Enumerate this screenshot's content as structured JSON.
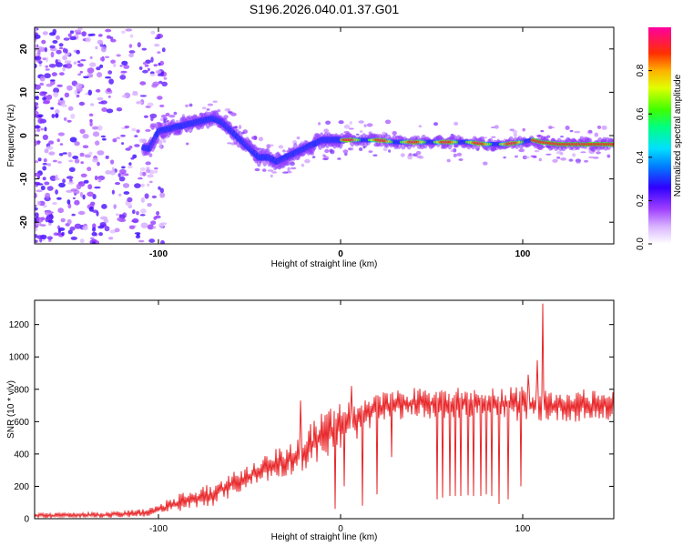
{
  "title": "S196.2026.040.01.37.G01",
  "chart_data": [
    {
      "type": "heatmap",
      "name": "spectrogram",
      "xlabel": "Height of straight line (km)",
      "ylabel": "Frequency (Hz)",
      "xlim": [
        -168,
        150
      ],
      "ylim": [
        -25,
        25
      ],
      "xticks": [
        -100,
        0,
        100
      ],
      "yticks": [
        -20,
        -10,
        0,
        10,
        20
      ],
      "colorbar": {
        "label": "Normalized spectral amplitude",
        "range": [
          0,
          1
        ],
        "ticks": [
          0,
          0.2,
          0.4,
          0.6,
          0.8
        ]
      },
      "ridge": {
        "x": [
          -168,
          -140,
          -120,
          -105,
          -100,
          -90,
          -80,
          -70,
          -65,
          -60,
          -55,
          -50,
          -45,
          -40,
          -35,
          -30,
          -25,
          -20,
          -15,
          -10,
          -5,
          0,
          10,
          20,
          30,
          40,
          50,
          60,
          70,
          80,
          90,
          100,
          105,
          110,
          120,
          130,
          140,
          150
        ],
        "y": [
          0,
          0,
          -2,
          -3,
          1,
          2,
          3,
          4,
          3,
          1,
          -1,
          -3,
          -5,
          -5,
          -6,
          -5,
          -4,
          -3,
          -2,
          -1,
          -1,
          -1,
          -1,
          -1,
          -1.5,
          -1.5,
          -1.5,
          -1.5,
          -1.5,
          -2,
          -2,
          -1.5,
          -1,
          -1.5,
          -2,
          -2,
          -2,
          -2
        ]
      }
    },
    {
      "type": "line",
      "name": "snr",
      "xlabel": "Height of straight line (km)",
      "ylabel": "SNR (10 * v/v)",
      "xlim": [
        -168,
        150
      ],
      "ylim": [
        0,
        1350
      ],
      "xticks": [
        -100,
        0,
        100
      ],
      "yticks": [
        0,
        200,
        400,
        600,
        800,
        1000,
        1200
      ],
      "color": "#e8282b",
      "envelope": {
        "x": [
          -168,
          -130,
          -110,
          -100,
          -90,
          -80,
          -70,
          -60,
          -50,
          -40,
          -30,
          -20,
          -10,
          0,
          10,
          20,
          30,
          40,
          50,
          60,
          70,
          80,
          90,
          100,
          110,
          120,
          130,
          140,
          150
        ],
        "low": [
          5,
          5,
          10,
          20,
          40,
          60,
          80,
          130,
          200,
          230,
          260,
          300,
          360,
          420,
          500,
          580,
          610,
          620,
          620,
          620,
          620,
          620,
          610,
          600,
          600,
          600,
          600,
          600,
          600
        ],
        "high": [
          35,
          40,
          60,
          90,
          150,
          180,
          230,
          290,
          330,
          420,
          450,
          550,
          660,
          720,
          730,
          770,
          800,
          810,
          810,
          810,
          810,
          810,
          810,
          820,
          810,
          800,
          800,
          800,
          800
        ]
      },
      "dropouts": {
        "x": [
          -3,
          2,
          12,
          20,
          28,
          53,
          56,
          60,
          63,
          66,
          70,
          73,
          77,
          80,
          83,
          87,
          92,
          99,
          111
        ],
        "y": [
          60,
          200,
          80,
          150,
          380,
          120,
          130,
          140,
          140,
          140,
          145,
          140,
          140,
          150,
          140,
          90,
          120,
          200,
          150
        ]
      },
      "spikes": {
        "x": [
          -22,
          6,
          103,
          108,
          111
        ],
        "y": [
          730,
          820,
          890,
          980,
          1330
        ]
      }
    }
  ]
}
